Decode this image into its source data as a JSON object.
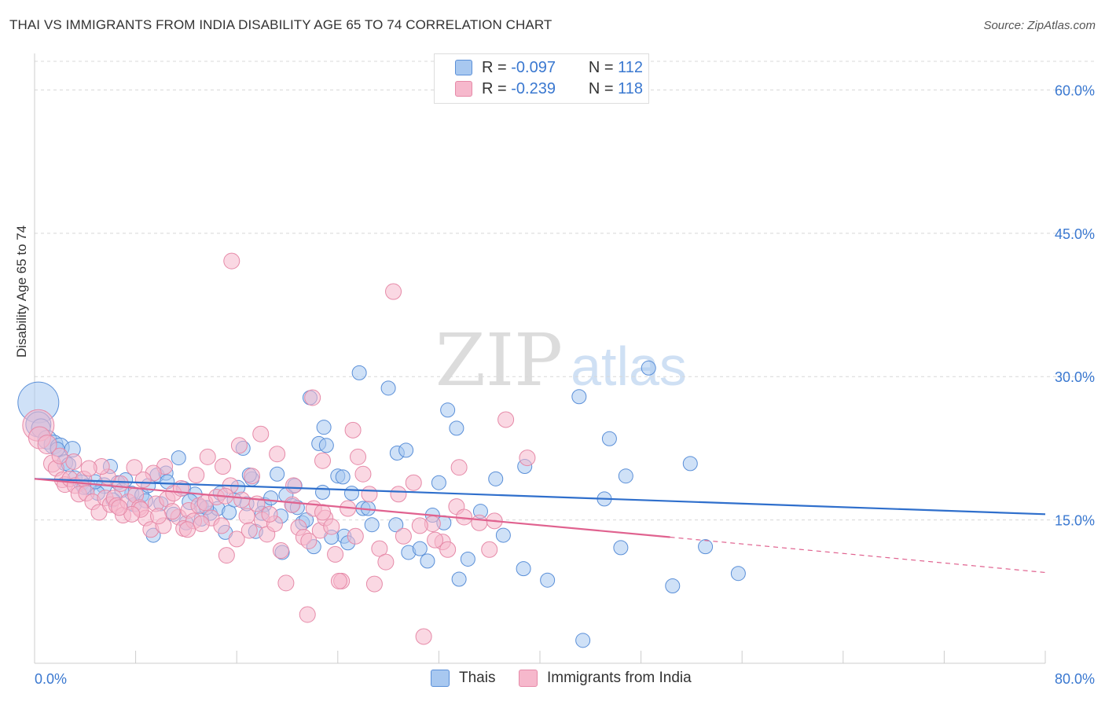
{
  "title": "THAI VS IMMIGRANTS FROM INDIA DISABILITY AGE 65 TO 74 CORRELATION CHART",
  "source": "Source: ZipAtlas.com",
  "watermark": {
    "zip": "ZIP",
    "atlas": "atlas"
  },
  "colors": {
    "blue_fill": "#a8c8f0",
    "blue_stroke": "#5a8fd8",
    "blue_line": "#2f6fcc",
    "pink_fill": "#f6b8cc",
    "pink_stroke": "#e68aa8",
    "pink_line": "#e0628f",
    "axis_text": "#3a78d0",
    "grid": "#d8d8d8"
  },
  "legend": {
    "row1": {
      "r_label": "R =",
      "r_value": "-0.097",
      "n_label": "N =",
      "n_value": "112"
    },
    "row2": {
      "r_label": "R =",
      "r_value": "-0.239",
      "n_label": "N =",
      "n_value": "118"
    }
  },
  "chart_data": {
    "type": "scatter",
    "title": "THAI VS IMMIGRANTS FROM INDIA DISABILITY AGE 65 TO 74 CORRELATION CHART",
    "xlabel": "",
    "ylabel": "Disability Age 65 to 74",
    "xlim": [
      0,
      80
    ],
    "ylim": [
      0,
      63
    ],
    "x_tick_labels": [
      "0.0%",
      "80.0%"
    ],
    "y_tick_labels": [
      "15.0%",
      "30.0%",
      "45.0%",
      "60.0%"
    ],
    "y_ticks": [
      15,
      30,
      45,
      60
    ],
    "grid": true,
    "legend_position": "bottom",
    "series": [
      {
        "name": "Thais",
        "color": "#a8c8f0",
        "trend": {
          "x": [
            0,
            80
          ],
          "y": [
            19.3,
            15.6
          ]
        },
        "points": [
          [
            0.3,
            27.3,
            26
          ],
          [
            0.3,
            25.0,
            16
          ],
          [
            0.5,
            24.6,
            12
          ],
          [
            1.0,
            23.4,
            12
          ],
          [
            1.5,
            22.9,
            12
          ],
          [
            2.0,
            22.6,
            12
          ],
          [
            3.0,
            22.4,
            10
          ],
          [
            2.4,
            21.0,
            10
          ],
          [
            3.2,
            19.4,
            9
          ],
          [
            3.7,
            18.9,
            10
          ],
          [
            4.2,
            18.5,
            10
          ],
          [
            5.5,
            18.6,
            10
          ],
          [
            5.0,
            17.8,
            9
          ],
          [
            6.6,
            18.9,
            9
          ],
          [
            7.7,
            17.8,
            9
          ],
          [
            7.9,
            16.6,
            9
          ],
          [
            8.5,
            17.6,
            9
          ],
          [
            9.7,
            19.7,
            9
          ],
          [
            10.4,
            19.9,
            9
          ],
          [
            11.8,
            18.3,
            9
          ],
          [
            12.7,
            17.7,
            9
          ],
          [
            12.3,
            16.9,
            10
          ],
          [
            13.2,
            16.4,
            9
          ],
          [
            13.9,
            15.7,
            9
          ],
          [
            14.5,
            16.2,
            9
          ],
          [
            13.2,
            15.1,
            9
          ],
          [
            15.1,
            13.7,
            9
          ],
          [
            15.4,
            15.8,
            9
          ],
          [
            16.1,
            18.4,
            9
          ],
          [
            16.5,
            22.5,
            9
          ],
          [
            16.8,
            16.7,
            9
          ],
          [
            17.2,
            19.3,
            9
          ],
          [
            17.5,
            13.8,
            9
          ],
          [
            18.2,
            16.6,
            9
          ],
          [
            18.7,
            17.3,
            9
          ],
          [
            19.2,
            19.8,
            9
          ],
          [
            19.9,
            17.6,
            9
          ],
          [
            20.4,
            16.5,
            9
          ],
          [
            20.6,
            18.6,
            9
          ],
          [
            19.6,
            11.6,
            9
          ],
          [
            21.2,
            14.7,
            9
          ],
          [
            21.5,
            15.0,
            9
          ],
          [
            22.5,
            23.0,
            9
          ],
          [
            22.8,
            17.9,
            9
          ],
          [
            22.9,
            24.7,
            9
          ],
          [
            23.1,
            22.8,
            9
          ],
          [
            24.0,
            19.6,
            9
          ],
          [
            24.4,
            19.5,
            9
          ],
          [
            24.5,
            13.3,
            9
          ],
          [
            25.1,
            17.8,
            9
          ],
          [
            25.7,
            30.4,
            9
          ],
          [
            26.0,
            16.2,
            9
          ],
          [
            26.7,
            14.5,
            9
          ],
          [
            28.0,
            28.8,
            9
          ],
          [
            28.6,
            14.5,
            9
          ],
          [
            28.7,
            22.0,
            9
          ],
          [
            29.4,
            22.3,
            9
          ],
          [
            29.6,
            11.6,
            9
          ],
          [
            30.5,
            12.0,
            9
          ],
          [
            31.1,
            10.7,
            9
          ],
          [
            31.5,
            15.5,
            9
          ],
          [
            32.0,
            18.9,
            9
          ],
          [
            32.4,
            14.7,
            9
          ],
          [
            32.7,
            26.5,
            9
          ],
          [
            33.4,
            24.6,
            9
          ],
          [
            33.6,
            8.8,
            9
          ],
          [
            34.3,
            10.9,
            9
          ],
          [
            35.3,
            15.9,
            9
          ],
          [
            36.5,
            19.3,
            9
          ],
          [
            37.1,
            13.4,
            9
          ],
          [
            38.8,
            20.6,
            9
          ],
          [
            38.7,
            9.9,
            9
          ],
          [
            40.6,
            8.7,
            9
          ],
          [
            43.1,
            27.9,
            9
          ],
          [
            45.1,
            17.2,
            9
          ],
          [
            45.5,
            23.5,
            9
          ],
          [
            46.8,
            19.6,
            9
          ],
          [
            46.4,
            12.1,
            9
          ],
          [
            48.6,
            30.9,
            9
          ],
          [
            50.5,
            8.1,
            9
          ],
          [
            51.9,
            20.9,
            9
          ],
          [
            53.1,
            12.2,
            9
          ],
          [
            55.7,
            9.4,
            9
          ],
          [
            43.4,
            2.4,
            9
          ],
          [
            11.4,
            21.5,
            9
          ],
          [
            10.5,
            19.0,
            9
          ],
          [
            9.4,
            13.4,
            9
          ],
          [
            8.8,
            17.0,
            9
          ],
          [
            6.9,
            18.1,
            9
          ],
          [
            6.2,
            17.1,
            9
          ],
          [
            4.8,
            19.0,
            9
          ],
          [
            3.9,
            18.4,
            9
          ],
          [
            26.4,
            16.2,
            9
          ],
          [
            24.8,
            12.6,
            9
          ],
          [
            23.5,
            13.2,
            9
          ],
          [
            22.1,
            12.2,
            9
          ],
          [
            20.8,
            16.3,
            9
          ],
          [
            19.5,
            15.4,
            9
          ],
          [
            18.0,
            15.7,
            9
          ],
          [
            17.0,
            19.7,
            9
          ],
          [
            15.8,
            17.1,
            9
          ],
          [
            14.7,
            17.8,
            9
          ],
          [
            13.6,
            16.3,
            9
          ],
          [
            12.0,
            14.7,
            9
          ],
          [
            11.0,
            15.6,
            9
          ],
          [
            10.0,
            16.7,
            9
          ],
          [
            9.0,
            18.6,
            9
          ],
          [
            7.2,
            19.2,
            9
          ],
          [
            6.0,
            20.6,
            9
          ],
          [
            2.7,
            20.8,
            9
          ],
          [
            1.8,
            22.4,
            9
          ],
          [
            21.8,
            27.8,
            9
          ]
        ]
      },
      {
        "name": "Immigrants from India",
        "color": "#f6b8cc",
        "trend": {
          "x": [
            0,
            50.3
          ],
          "y": [
            19.3,
            13.2
          ]
        },
        "trend_dashed": {
          "x": [
            50.3,
            80
          ],
          "y": [
            13.2,
            9.5
          ]
        },
        "points": [
          [
            0.3,
            24.9,
            20
          ],
          [
            0.4,
            23.6,
            14
          ],
          [
            1.0,
            22.9,
            12
          ],
          [
            1.4,
            20.9,
            11
          ],
          [
            1.7,
            20.4,
            10
          ],
          [
            2.2,
            19.2,
            10
          ],
          [
            2.4,
            18.7,
            10
          ],
          [
            2.8,
            19.3,
            10
          ],
          [
            3.2,
            18.6,
            10
          ],
          [
            3.5,
            17.7,
            10
          ],
          [
            3.9,
            19.3,
            10
          ],
          [
            4.1,
            17.8,
            10
          ],
          [
            4.6,
            16.9,
            10
          ],
          [
            5.1,
            15.8,
            10
          ],
          [
            5.6,
            17.3,
            10
          ],
          [
            6.0,
            16.6,
            10
          ],
          [
            6.3,
            17.3,
            10
          ],
          [
            6.5,
            16.5,
            10
          ],
          [
            7.0,
            15.5,
            10
          ],
          [
            7.4,
            16.9,
            10
          ],
          [
            8.0,
            17.6,
            10
          ],
          [
            8.3,
            16.3,
            10
          ],
          [
            8.8,
            15.2,
            10
          ],
          [
            9.2,
            14.0,
            10
          ],
          [
            9.6,
            16.7,
            10
          ],
          [
            10.2,
            14.4,
            10
          ],
          [
            10.5,
            17.2,
            10
          ],
          [
            11.0,
            17.8,
            10
          ],
          [
            11.4,
            15.3,
            10
          ],
          [
            11.8,
            14.1,
            10
          ],
          [
            12.2,
            16.0,
            10
          ],
          [
            12.6,
            14.9,
            10
          ],
          [
            13.0,
            16.5,
            10
          ],
          [
            13.5,
            16.8,
            10
          ],
          [
            14.0,
            15.2,
            10
          ],
          [
            14.4,
            17.4,
            10
          ],
          [
            14.8,
            14.4,
            10
          ],
          [
            15.2,
            11.3,
            10
          ],
          [
            15.5,
            18.6,
            10
          ],
          [
            16.0,
            13.0,
            10
          ],
          [
            16.4,
            17.1,
            10
          ],
          [
            16.8,
            15.4,
            10
          ],
          [
            17.2,
            19.6,
            10
          ],
          [
            17.6,
            16.7,
            10
          ],
          [
            18.0,
            15.0,
            10
          ],
          [
            18.4,
            13.5,
            10
          ],
          [
            19.0,
            14.6,
            10
          ],
          [
            19.5,
            11.8,
            10
          ],
          [
            19.9,
            8.4,
            10
          ],
          [
            20.4,
            16.6,
            10
          ],
          [
            20.9,
            14.2,
            10
          ],
          [
            21.3,
            13.2,
            10
          ],
          [
            21.7,
            12.8,
            10
          ],
          [
            22.1,
            16.2,
            10
          ],
          [
            22.6,
            13.9,
            10
          ],
          [
            23.0,
            15.2,
            10
          ],
          [
            23.5,
            14.3,
            10
          ],
          [
            23.8,
            11.4,
            10
          ],
          [
            24.3,
            8.6,
            10
          ],
          [
            24.8,
            16.2,
            10
          ],
          [
            25.2,
            24.4,
            10
          ],
          [
            25.6,
            21.6,
            10
          ],
          [
            26.0,
            19.8,
            10
          ],
          [
            27.3,
            12.0,
            10
          ],
          [
            27.8,
            10.6,
            10
          ],
          [
            29.2,
            13.3,
            10
          ],
          [
            30.0,
            18.9,
            10
          ],
          [
            31.5,
            14.6,
            10
          ],
          [
            32.3,
            12.7,
            10
          ],
          [
            33.4,
            16.4,
            10
          ],
          [
            33.6,
            20.5,
            10
          ],
          [
            36.0,
            11.9,
            10
          ],
          [
            36.4,
            14.9,
            10
          ],
          [
            37.3,
            25.5,
            10
          ],
          [
            39.0,
            21.5,
            10
          ],
          [
            28.4,
            38.9,
            10
          ],
          [
            15.6,
            42.1,
            10
          ],
          [
            22.0,
            27.8,
            10
          ],
          [
            21.6,
            5.1,
            10
          ],
          [
            24.1,
            8.6,
            10
          ],
          [
            26.9,
            8.3,
            10
          ],
          [
            30.8,
            2.8,
            10
          ],
          [
            12.8,
            19.7,
            10
          ],
          [
            11.6,
            18.3,
            10
          ],
          [
            10.3,
            20.6,
            10
          ],
          [
            9.4,
            19.9,
            10
          ],
          [
            8.6,
            19.2,
            10
          ],
          [
            7.9,
            20.5,
            10
          ],
          [
            6.8,
            18.8,
            10
          ],
          [
            5.8,
            19.5,
            10
          ],
          [
            5.3,
            20.6,
            10
          ],
          [
            4.3,
            20.4,
            10
          ],
          [
            3.1,
            21.1,
            10
          ],
          [
            2.0,
            21.7,
            10
          ],
          [
            13.7,
            21.6,
            10
          ],
          [
            14.9,
            20.6,
            10
          ],
          [
            16.2,
            22.8,
            10
          ],
          [
            17.9,
            24.0,
            10
          ],
          [
            19.2,
            21.9,
            10
          ],
          [
            20.5,
            18.6,
            10
          ],
          [
            22.8,
            21.2,
            10
          ],
          [
            25.4,
            13.3,
            10
          ],
          [
            26.5,
            17.7,
            10
          ],
          [
            28.8,
            17.7,
            10
          ],
          [
            30.5,
            14.4,
            10
          ],
          [
            31.7,
            12.9,
            10
          ],
          [
            32.7,
            11.9,
            10
          ],
          [
            34.0,
            15.3,
            10
          ],
          [
            35.2,
            14.7,
            10
          ],
          [
            22.8,
            15.8,
            10
          ],
          [
            18.6,
            15.6,
            10
          ],
          [
            17.0,
            13.9,
            10
          ],
          [
            15.1,
            17.5,
            10
          ],
          [
            13.2,
            14.6,
            10
          ],
          [
            12.1,
            14.0,
            10
          ],
          [
            10.9,
            15.9,
            10
          ],
          [
            9.8,
            15.4,
            10
          ],
          [
            8.4,
            16.1,
            10
          ],
          [
            7.7,
            15.6,
            10
          ],
          [
            6.7,
            16.3,
            10
          ]
        ]
      }
    ]
  },
  "bottom_legend": {
    "series1": "Thais",
    "series2": "Immigrants from India"
  }
}
